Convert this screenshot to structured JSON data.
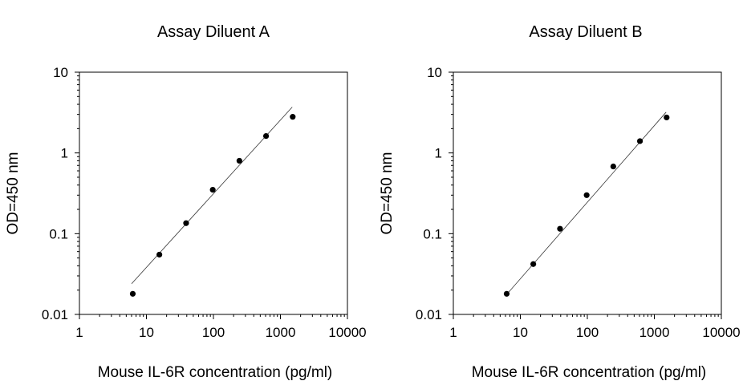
{
  "chart_data": [
    {
      "type": "scatter",
      "title": "Assay Diluent A",
      "xlabel": "Mouse IL-6R concentration (pg/ml)",
      "ylabel": "OD=450 nm",
      "xscale": "log",
      "yscale": "log",
      "xlim": [
        1,
        10000
      ],
      "ylim": [
        0.01,
        10
      ],
      "x_ticks": [
        "1",
        "10",
        "100",
        "1000",
        "10000"
      ],
      "y_ticks": [
        "0.01",
        "0.1",
        "1",
        "10"
      ],
      "grid": false,
      "series": [
        {
          "x": [
            6.25,
            15.6,
            39.1,
            97.7,
            244,
            610,
            1525
          ],
          "y": [
            0.018,
            0.055,
            0.135,
            0.35,
            0.8,
            1.62,
            2.8
          ]
        }
      ],
      "fit_line": {
        "x": [
          6.0,
          1500
        ],
        "y": [
          0.024,
          3.7
        ]
      }
    },
    {
      "type": "scatter",
      "title": "Assay Diluent B",
      "xlabel": "Mouse IL-6R concentration (pg/ml)",
      "ylabel": "OD=450 nm",
      "xscale": "log",
      "yscale": "log",
      "xlim": [
        1,
        10000
      ],
      "ylim": [
        0.01,
        10
      ],
      "x_ticks": [
        "1",
        "10",
        "100",
        "1000",
        "10000"
      ],
      "y_ticks": [
        "0.01",
        "0.1",
        "1",
        "10"
      ],
      "grid": false,
      "series": [
        {
          "x": [
            6.25,
            15.6,
            39.1,
            97.7,
            244,
            610,
            1525
          ],
          "y": [
            0.018,
            0.042,
            0.115,
            0.3,
            0.68,
            1.4,
            2.75
          ]
        }
      ],
      "fit_line": {
        "x": [
          6.0,
          1500
        ],
        "y": [
          0.017,
          3.2
        ]
      }
    }
  ]
}
